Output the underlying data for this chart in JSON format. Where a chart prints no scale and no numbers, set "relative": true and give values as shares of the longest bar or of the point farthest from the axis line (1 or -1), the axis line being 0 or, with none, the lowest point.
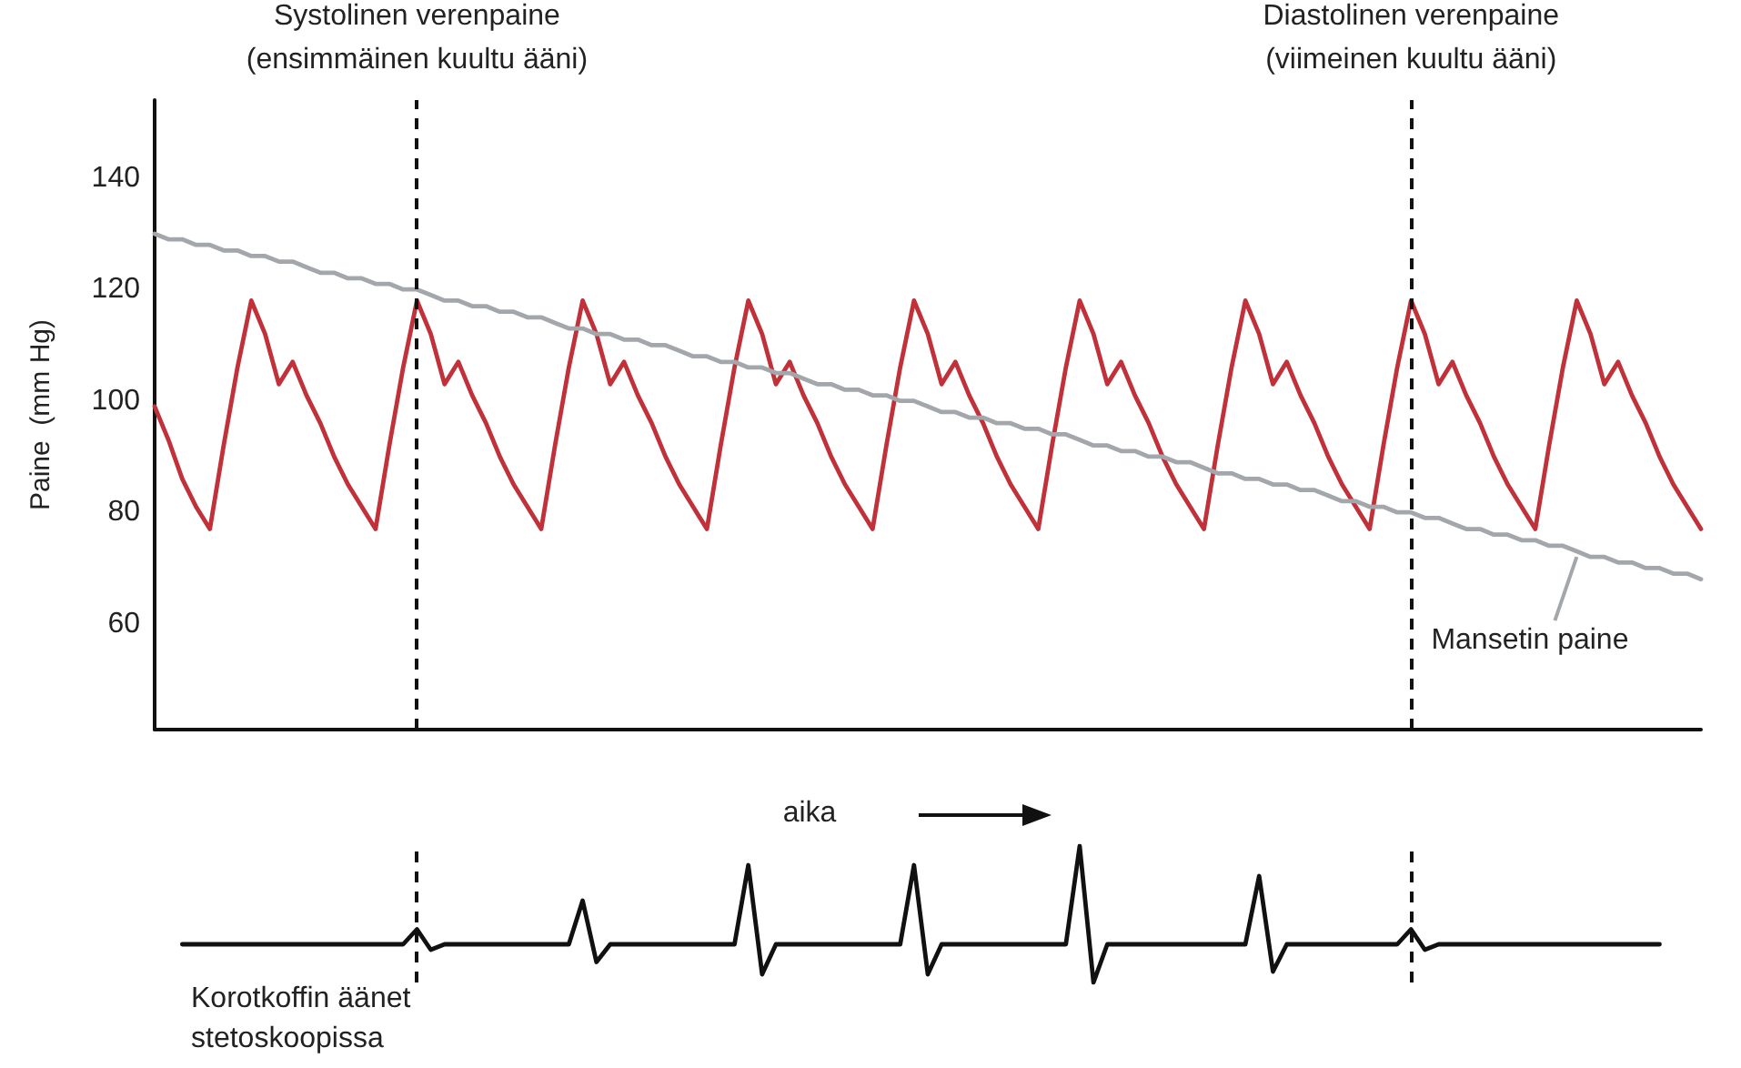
{
  "chart_data": [
    {
      "type": "line",
      "xlabel": "aika",
      "ylabel": "Paine  (mm Hg)",
      "ylim": [
        41,
        154
      ],
      "yticks": [
        60,
        80,
        100,
        120,
        140
      ],
      "tick_labels": "y",
      "grid": false,
      "legend": "bottom right",
      "line_style": "solid",
      "annotations": [
        "Systolinen verenpaine\n(ensimmäinen kuultu ääni)",
        "Diastolinen verenpaine\n(viimeinen kuultu ääni)"
      ],
      "categories": [
        null,
        null,
        null,
        null,
        null,
        null,
        null,
        null,
        null,
        null,
        null,
        null,
        null,
        null,
        null,
        null,
        null,
        null,
        null,
        null,
        null,
        null,
        null,
        null,
        null,
        null,
        null,
        null,
        null,
        null,
        null,
        null,
        null,
        null,
        null,
        null,
        null,
        null,
        null,
        null,
        null,
        null,
        null,
        null,
        null,
        null,
        null,
        null,
        null,
        null,
        null,
        null,
        null,
        null,
        null,
        null,
        null,
        null,
        null,
        null,
        null,
        null,
        null,
        null,
        null,
        null,
        null,
        null,
        null,
        null,
        null,
        null,
        null,
        null,
        null,
        null,
        null,
        null,
        null,
        null,
        null,
        null,
        null,
        null,
        null,
        null,
        null,
        null,
        null,
        null,
        null,
        null,
        null,
        null,
        null,
        null,
        null,
        null,
        null,
        null,
        null,
        null,
        null,
        null,
        null,
        null,
        null,
        null,
        null,
        null,
        null,
        null,
        null
      ],
      "series": [
        {
          "color": "#c0313a",
          "values": [
            99,
            93,
            86,
            81,
            77,
            92,
            106,
            118,
            112,
            103,
            107,
            101,
            96,
            90,
            85,
            81,
            77,
            92,
            106,
            118,
            112,
            103,
            107,
            101,
            96,
            90,
            85,
            81,
            77,
            92,
            106,
            118,
            112,
            103,
            107,
            101,
            96,
            90,
            85,
            81,
            77,
            92,
            106,
            118,
            112,
            103,
            107,
            101,
            96,
            90,
            85,
            81,
            77,
            92,
            106,
            118,
            112,
            103,
            107,
            101,
            96,
            90,
            85,
            81,
            77,
            92,
            106,
            118,
            112,
            103,
            107,
            101,
            96,
            90,
            85,
            81,
            77,
            92,
            106,
            118,
            112,
            103,
            107,
            101,
            96,
            90,
            85,
            81,
            77,
            92,
            106,
            118,
            112,
            103,
            107,
            101,
            96,
            90,
            85,
            81,
            77,
            92,
            106,
            118,
            112,
            103,
            107,
            101,
            96,
            90,
            85,
            81,
            77
          ]
        },
        {
          "name": "Mansetin paine",
          "color": "#a3a7ab",
          "values": [
            130,
            129,
            129,
            128,
            128,
            127,
            127,
            126,
            126,
            125,
            125,
            124,
            123,
            123,
            122,
            122,
            121,
            121,
            120,
            120,
            119,
            118,
            118,
            117,
            117,
            116,
            116,
            115,
            115,
            114,
            113,
            113,
            112,
            112,
            111,
            111,
            110,
            110,
            109,
            108,
            108,
            107,
            107,
            106,
            106,
            105,
            105,
            104,
            103,
            103,
            102,
            102,
            101,
            101,
            100,
            100,
            99,
            98,
            98,
            97,
            97,
            96,
            96,
            95,
            95,
            94,
            94,
            93,
            92,
            92,
            91,
            91,
            90,
            90,
            89,
            89,
            88,
            87,
            87,
            86,
            86,
            85,
            85,
            84,
            84,
            83,
            82,
            82,
            81,
            81,
            80,
            80,
            79,
            79,
            78,
            77,
            77,
            76,
            76,
            75,
            75,
            74,
            74,
            73,
            72,
            72,
            71,
            71,
            70,
            70,
            69,
            69,
            68
          ]
        }
      ]
    },
    {
      "type": "line",
      "relative": true,
      "tick_labels": false,
      "grid": false,
      "line_style": "solid",
      "annotations": [
        "Korotkoffin äänet stetoskoopissa"
      ],
      "categories": [
        null,
        null,
        null,
        null,
        null,
        null,
        null,
        null,
        null,
        null,
        null,
        null,
        null,
        null,
        null,
        null,
        null,
        null,
        null,
        null,
        null,
        null,
        null,
        null,
        null,
        null,
        null,
        null,
        null,
        null,
        null,
        null,
        null,
        null,
        null,
        null,
        null,
        null,
        null,
        null,
        null,
        null,
        null,
        null,
        null,
        null,
        null,
        null,
        null,
        null,
        null,
        null,
        null,
        null,
        null,
        null,
        null,
        null,
        null,
        null,
        null,
        null,
        null,
        null,
        null,
        null,
        null,
        null,
        null,
        null,
        null,
        null,
        null,
        null,
        null,
        null,
        null,
        null,
        null,
        null,
        null,
        null,
        null,
        null,
        null,
        null,
        null,
        null,
        null,
        null,
        null,
        null,
        null,
        null,
        null,
        null,
        null,
        null,
        null,
        null,
        null,
        null,
        null,
        null,
        null,
        null,
        null,
        null,
        null,
        null,
        null,
        null,
        null
      ],
      "series": [
        {
          "color": "#111111",
          "values": [
            null,
            null,
            0.28,
            0.28,
            0.28,
            0.28,
            0.28,
            0.28,
            0.28,
            0.28,
            0.28,
            0.28,
            0.28,
            0.28,
            0.28,
            0.28,
            0.28,
            0.28,
            0.28,
            0.39,
            0.24,
            0.28,
            0.28,
            0.28,
            0.28,
            0.28,
            0.28,
            0.28,
            0.28,
            0.28,
            0.28,
            0.6,
            0.15,
            0.28,
            0.28,
            0.28,
            0.28,
            0.28,
            0.28,
            0.28,
            0.28,
            0.28,
            0.28,
            0.86,
            0.06,
            0.28,
            0.28,
            0.28,
            0.28,
            0.28,
            0.28,
            0.28,
            0.28,
            0.28,
            0.28,
            0.86,
            0.06,
            0.28,
            0.28,
            0.28,
            0.28,
            0.28,
            0.28,
            0.28,
            0.28,
            0.28,
            0.28,
            1,
            0,
            0.28,
            0.28,
            0.28,
            0.28,
            0.28,
            0.28,
            0.28,
            0.28,
            0.28,
            0.28,
            0.28,
            0.78,
            0.08,
            0.28,
            0.28,
            0.28,
            0.28,
            0.28,
            0.28,
            0.28,
            0.28,
            0.28,
            0.39,
            0.24,
            0.28,
            0.28,
            0.28,
            0.28,
            0.28,
            0.28,
            0.28,
            0.28,
            0.28,
            0.28,
            0.28,
            0.28,
            0.28,
            0.28,
            0.28,
            0.28,
            0.28,
            null,
            null,
            null
          ]
        }
      ]
    }
  ]
}
